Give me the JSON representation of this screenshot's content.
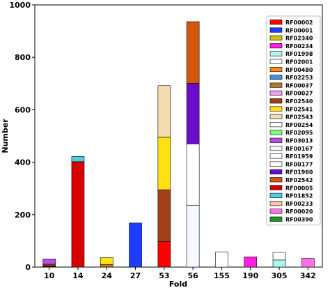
{
  "chart_data": {
    "type": "bar",
    "stacked": true,
    "xlabel": "Fold",
    "ylabel": "Number",
    "ylim": [
      0,
      1000
    ],
    "yticks": [
      0,
      200,
      400,
      600,
      800,
      1000
    ],
    "categories": [
      "10",
      "14",
      "24",
      "27",
      "53",
      "56",
      "155",
      "190",
      "305",
      "342"
    ],
    "legend_position": "top-right",
    "series": [
      {
        "name": "RF00002",
        "color": "#ff0000",
        "values": [
          0,
          0,
          0,
          0,
          97,
          0,
          0,
          0,
          0,
          0
        ]
      },
      {
        "name": "RF00001",
        "color": "#1f3dff",
        "values": [
          0,
          0,
          0,
          168,
          0,
          0,
          0,
          0,
          0,
          0
        ]
      },
      {
        "name": "RF02340",
        "color": "#c8c400",
        "values": [
          0,
          0,
          0,
          0,
          0,
          0,
          0,
          0,
          0,
          0
        ]
      },
      {
        "name": "RF00234",
        "color": "#ff1fe0",
        "values": [
          0,
          0,
          0,
          0,
          0,
          0,
          0,
          39,
          0,
          0
        ]
      },
      {
        "name": "RF01998",
        "color": "#aef5f0",
        "values": [
          0,
          0,
          0,
          0,
          0,
          0,
          0,
          0,
          27,
          0
        ]
      },
      {
        "name": "RF02001",
        "color": "#ffffff",
        "values": [
          0,
          0,
          0,
          0,
          0,
          0,
          0,
          0,
          29,
          0
        ]
      },
      {
        "name": "RF00480",
        "color": "#ff8c1a",
        "values": [
          0,
          0,
          0,
          0,
          0,
          0,
          0,
          0,
          0,
          0
        ]
      },
      {
        "name": "RF02253",
        "color": "#4a8fd6",
        "values": [
          0,
          0,
          0,
          0,
          0,
          0,
          0,
          0,
          0,
          0
        ]
      },
      {
        "name": "RF00037",
        "color": "#b8782a",
        "values": [
          0,
          0,
          10,
          0,
          0,
          0,
          0,
          0,
          0,
          0
        ]
      },
      {
        "name": "RF00027",
        "color": "#f0a0f0",
        "values": [
          0,
          0,
          0,
          0,
          0,
          0,
          0,
          0,
          0,
          0
        ]
      },
      {
        "name": "RF02540",
        "color": "#a3401a",
        "values": [
          0,
          0,
          0,
          0,
          198,
          0,
          0,
          0,
          0,
          0
        ]
      },
      {
        "name": "RF02541",
        "color": "#ffe010",
        "values": [
          0,
          0,
          26,
          0,
          200,
          0,
          0,
          0,
          0,
          0
        ]
      },
      {
        "name": "RF02543",
        "color": "#f5dcae",
        "values": [
          0,
          0,
          0,
          0,
          197,
          0,
          0,
          0,
          0,
          0
        ]
      },
      {
        "name": "RF00254",
        "color": "#ffffff",
        "values": [
          0,
          0,
          0,
          0,
          0,
          0,
          0,
          0,
          0,
          0
        ]
      },
      {
        "name": "RF02095",
        "color": "#7cff7c",
        "values": [
          0,
          0,
          0,
          0,
          0,
          0,
          0,
          0,
          0,
          0
        ]
      },
      {
        "name": "RF03013",
        "color": "#b84ce8",
        "values": [
          20,
          0,
          0,
          0,
          0,
          0,
          0,
          0,
          0,
          0
        ]
      },
      {
        "name": "RF00167",
        "color": "#f5f9ff",
        "values": [
          0,
          0,
          0,
          0,
          0,
          236,
          0,
          0,
          0,
          0
        ]
      },
      {
        "name": "RF01959",
        "color": "#ffffff",
        "values": [
          0,
          0,
          0,
          0,
          0,
          234,
          0,
          0,
          0,
          0
        ]
      },
      {
        "name": "RF00177",
        "color": "#ffffff",
        "values": [
          0,
          0,
          0,
          0,
          0,
          0,
          58,
          0,
          0,
          0
        ]
      },
      {
        "name": "RF01960",
        "color": "#6a0ccc",
        "values": [
          0,
          0,
          0,
          0,
          0,
          231,
          0,
          0,
          0,
          0
        ]
      },
      {
        "name": "RF02542",
        "color": "#d4570e",
        "values": [
          0,
          0,
          0,
          0,
          0,
          235,
          0,
          0,
          0,
          0
        ]
      },
      {
        "name": "RF00005",
        "color": "#d60000",
        "values": [
          0,
          402,
          0,
          0,
          0,
          0,
          0,
          0,
          0,
          0
        ]
      },
      {
        "name": "RF01852",
        "color": "#4ecfe0",
        "values": [
          0,
          20,
          0,
          0,
          0,
          0,
          0,
          0,
          0,
          0
        ]
      },
      {
        "name": "RF00233",
        "color": "#f7c6b0",
        "values": [
          0,
          0,
          0,
          0,
          0,
          0,
          0,
          0,
          0,
          0
        ]
      },
      {
        "name": "RF00020",
        "color": "#ff6fe6",
        "values": [
          0,
          0,
          0,
          0,
          0,
          0,
          0,
          0,
          0,
          33
        ]
      },
      {
        "name": "RF00390",
        "color": "#1a9a1a",
        "values": [
          0,
          0,
          0,
          0,
          0,
          0,
          0,
          0,
          0,
          0
        ]
      }
    ],
    "extra_segments": [
      {
        "category": "10",
        "color": "#000000",
        "value": 4
      },
      {
        "category": "10",
        "color": "#a3401a",
        "value": 7
      }
    ]
  }
}
